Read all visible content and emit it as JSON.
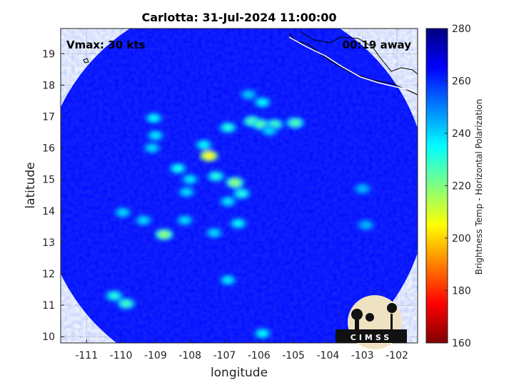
{
  "chart_data": {
    "type": "heatmap",
    "title": "Carlotta: 31-Jul-2024 11:00:00",
    "xlabel": "longitude",
    "ylabel": "latitude",
    "xlim": [
      -111.75,
      -101.4
    ],
    "ylim": [
      9.8,
      19.8
    ],
    "xticks": [
      -111,
      -110,
      -109,
      -108,
      -107,
      -106,
      -105,
      -104,
      -103,
      -102
    ],
    "yticks": [
      10,
      11,
      12,
      13,
      14,
      15,
      16,
      17,
      18,
      19
    ],
    "xtick_labels": [
      "-111",
      "-110",
      "-109",
      "-108",
      "-107",
      "-106",
      "-105",
      "-104",
      "-103",
      "-102"
    ],
    "ytick_labels": [
      "10",
      "11",
      "12",
      "13",
      "14",
      "15",
      "16",
      "17",
      "18",
      "19"
    ],
    "grid": true,
    "annotations": {
      "vmax": "Vmax: 30 kts",
      "time_away": "00:19 away"
    },
    "colorbar": {
      "label": "Brightness Temp - Horizontal Polarization",
      "range": [
        160,
        280
      ],
      "ticks": [
        160,
        180,
        200,
        220,
        240,
        260,
        280
      ],
      "tick_labels": [
        "160",
        "180",
        "200",
        "220",
        "240",
        "260",
        "280"
      ],
      "colormap": "jet"
    },
    "swath": {
      "center": [
        -106.7,
        14.65
      ],
      "radius_deg": 5.6,
      "background_value": 264
    },
    "cold_cores": [
      {
        "lon": -107.45,
        "lat": 15.75,
        "value": 205
      },
      {
        "lon": -107.25,
        "lat": 15.1,
        "value": 232
      },
      {
        "lon": -106.7,
        "lat": 14.9,
        "value": 218
      },
      {
        "lon": -106.5,
        "lat": 14.55,
        "value": 232
      },
      {
        "lon": -106.9,
        "lat": 14.3,
        "value": 238
      },
      {
        "lon": -106.6,
        "lat": 13.6,
        "value": 236
      },
      {
        "lon": -107.3,
        "lat": 13.3,
        "value": 240
      },
      {
        "lon": -106.9,
        "lat": 16.65,
        "value": 232
      },
      {
        "lon": -106.2,
        "lat": 16.85,
        "value": 226
      },
      {
        "lon": -105.95,
        "lat": 16.75,
        "value": 226
      },
      {
        "lon": -105.55,
        "lat": 16.75,
        "value": 228
      },
      {
        "lon": -104.95,
        "lat": 16.8,
        "value": 226
      },
      {
        "lon": -105.7,
        "lat": 16.55,
        "value": 240
      },
      {
        "lon": -105.9,
        "lat": 17.45,
        "value": 236
      },
      {
        "lon": -106.3,
        "lat": 17.7,
        "value": 242
      },
      {
        "lon": -108.35,
        "lat": 15.35,
        "value": 234
      },
      {
        "lon": -108.0,
        "lat": 15.0,
        "value": 238
      },
      {
        "lon": -108.1,
        "lat": 14.6,
        "value": 240
      },
      {
        "lon": -107.6,
        "lat": 16.1,
        "value": 236
      },
      {
        "lon": -109.05,
        "lat": 16.95,
        "value": 236
      },
      {
        "lon": -109.0,
        "lat": 16.4,
        "value": 238
      },
      {
        "lon": -109.1,
        "lat": 16.0,
        "value": 240
      },
      {
        "lon": -109.95,
        "lat": 13.95,
        "value": 240
      },
      {
        "lon": -109.35,
        "lat": 13.7,
        "value": 240
      },
      {
        "lon": -108.75,
        "lat": 13.25,
        "value": 218
      },
      {
        "lon": -108.15,
        "lat": 13.7,
        "value": 240
      },
      {
        "lon": -106.9,
        "lat": 11.8,
        "value": 238
      },
      {
        "lon": -110.2,
        "lat": 11.3,
        "value": 232
      },
      {
        "lon": -109.85,
        "lat": 11.05,
        "value": 228
      },
      {
        "lon": -105.9,
        "lat": 10.1,
        "value": 236
      },
      {
        "lon": -103.0,
        "lat": 14.7,
        "value": 244
      },
      {
        "lon": -102.9,
        "lat": 13.55,
        "value": 244
      }
    ]
  },
  "logo": {
    "text": "CIMSS"
  }
}
